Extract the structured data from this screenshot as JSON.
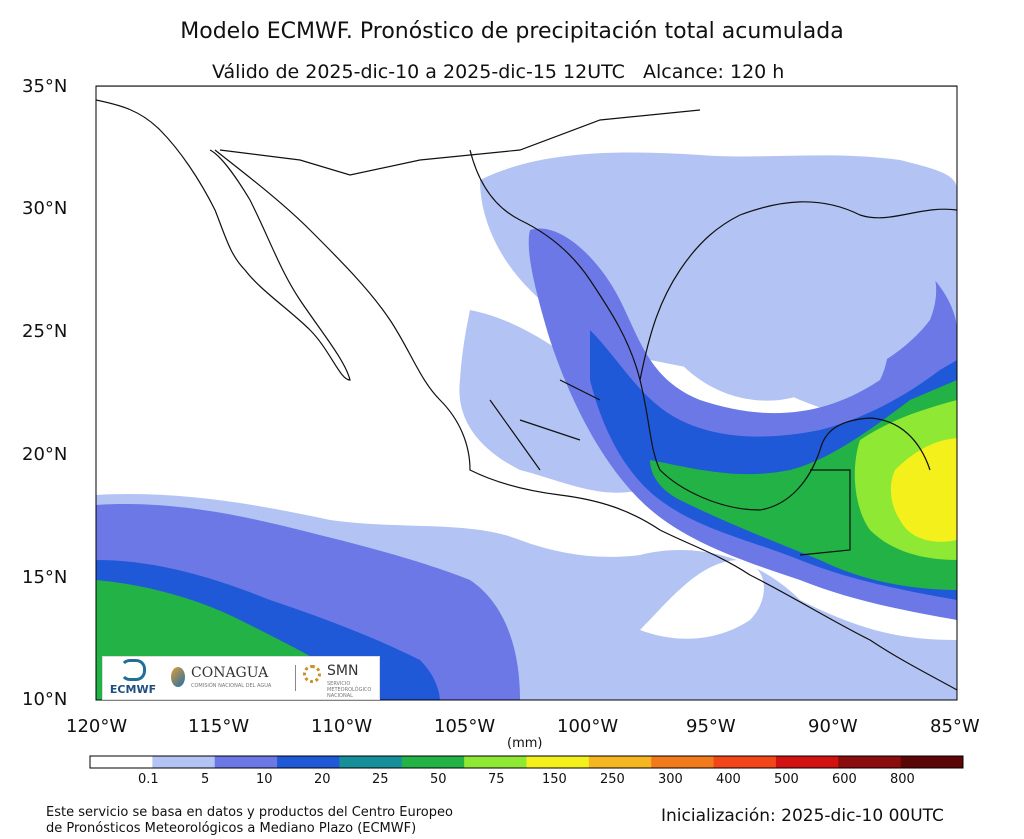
{
  "header": {
    "title": "Modelo ECMWF. Pronóstico de precipitación total acumulada",
    "subtitle": "Válido de 2025-dic-10 a 2025-dic-15 12UTC   Alcance: 120 h"
  },
  "axes": {
    "lat_ticks": [
      "35°N",
      "30°N",
      "25°N",
      "20°N",
      "15°N",
      "10°N"
    ],
    "lon_ticks": [
      "120°W",
      "115°W",
      "110°W",
      "105°W",
      "100°W",
      "95°W",
      "90°W",
      "85°W"
    ],
    "lat_range": [
      10,
      35
    ],
    "lon_range": [
      -120,
      -85
    ]
  },
  "colorbar": {
    "unit": "(mm)",
    "labels": [
      "0.1",
      "5",
      "10",
      "20",
      "25",
      "50",
      "75",
      "150",
      "250",
      "300",
      "400",
      "500",
      "600",
      "800"
    ],
    "colors": [
      "#ffffff",
      "#b3c4f4",
      "#6b78e6",
      "#1f59d8",
      "#168f9a",
      "#22b245",
      "#8ee834",
      "#f4f01c",
      "#f6b622",
      "#f27a1c",
      "#f2461a",
      "#d21111",
      "#8a0c0c",
      "#5a0606"
    ]
  },
  "logos": {
    "ecmwf": "ECMWF",
    "conagua": "CONAGUA",
    "conagua_sub": "COMISIÓN NACIONAL DEL AGUA",
    "smn": "SMN",
    "smn_sub": "SERVICIO METEOROLÓGICO NACIONAL"
  },
  "footer": {
    "note_line1": "Este servicio se basa en datos y productos del Centro Europeo",
    "note_line2": "de Pronósticos Meteorológicos a Mediano Plazo (ECMWF)",
    "init": "Inicialización: 2025-dic-10 00UTC"
  }
}
